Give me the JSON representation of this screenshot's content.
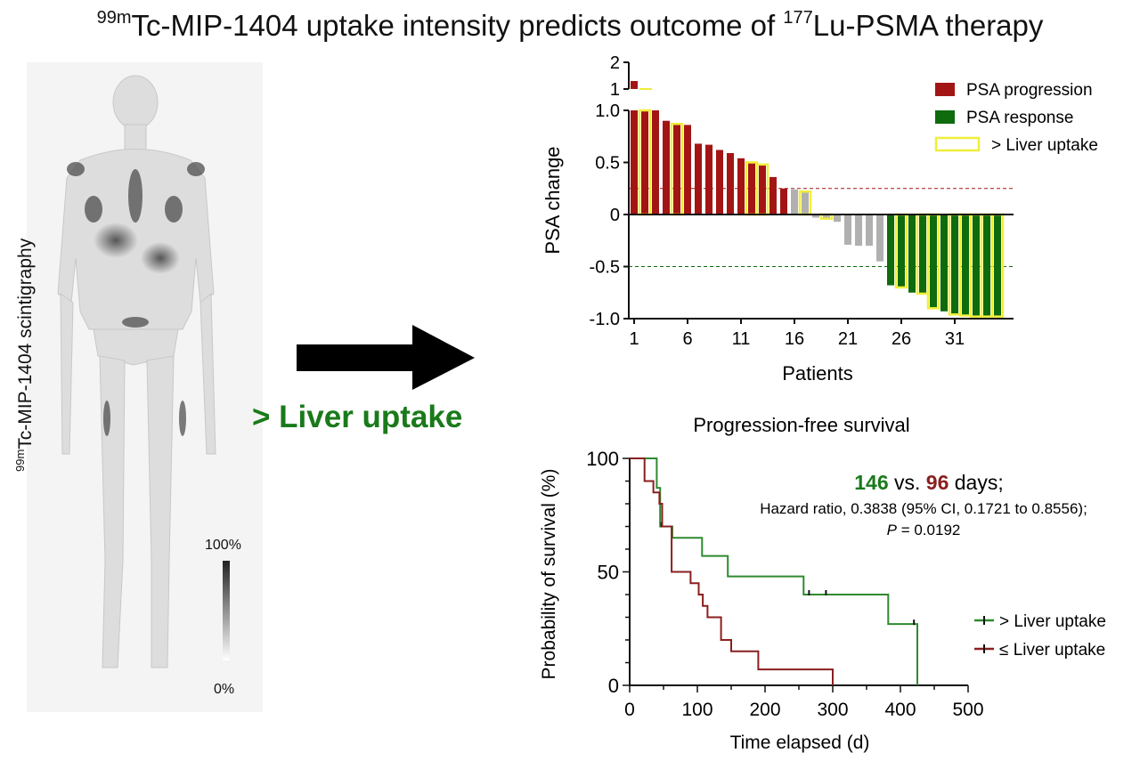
{
  "figure": {
    "title_sup1": "99m",
    "title_main1": "Tc-MIP-1404 uptake intensity predicts outcome of ",
    "title_sup2": "177",
    "title_main2": "Lu-PSMA therapy",
    "left_label_sup": "99m",
    "left_label_main": "Tc-MIP-1404 scintigraphy",
    "scale_max": "100%",
    "scale_min": "0%",
    "arrow_label": "> Liver uptake",
    "colors": {
      "progression": "#a31515",
      "response": "#0e6b0e",
      "liver_outline": "#f0ee3a",
      "neutral": "#b0b0b0",
      "arrow_label": "#1a7a1a"
    },
    "icons": [
      "right-arrow-icon",
      "body-scan-image",
      "grayscale-bar"
    ]
  },
  "chart_data": [
    {
      "type": "bar",
      "ylabel": "PSA change",
      "xlabel": "Patients",
      "legend": [
        "PSA progression",
        "PSA response",
        "> Liver uptake"
      ],
      "legend_position": "top-right",
      "ylim_lower": [
        -1.0,
        1.0
      ],
      "ylim_upper": [
        1,
        2
      ],
      "yticks_lower": [
        "1.0",
        "0.5",
        "0",
        "-0.5",
        "-1.0"
      ],
      "yticks_upper": [
        "2",
        "1"
      ],
      "xticks": [
        "1",
        "6",
        "11",
        "16",
        "21",
        "26",
        "31"
      ],
      "threshold_lines": [
        0.25,
        -0.5
      ],
      "values": [
        1.3,
        1.0,
        1.0,
        0.9,
        0.87,
        0.86,
        0.68,
        0.67,
        0.62,
        0.59,
        0.54,
        0.5,
        0.48,
        0.36,
        0.25,
        0.24,
        0.22,
        -0.03,
        -0.04,
        -0.07,
        -0.29,
        -0.3,
        -0.3,
        -0.45,
        -0.68,
        -0.7,
        -0.75,
        -0.76,
        -0.9,
        -0.93,
        -0.96,
        -0.97,
        -0.98,
        -0.98,
        -0.98
      ],
      "category": [
        "progression",
        "progression",
        "progression",
        "progression",
        "progression",
        "progression",
        "progression",
        "progression",
        "progression",
        "progression",
        "progression",
        "progression",
        "progression",
        "progression",
        "progression",
        "neutral",
        "neutral",
        "neutral",
        "neutral",
        "neutral",
        "neutral",
        "neutral",
        "neutral",
        "neutral",
        "response",
        "response",
        "response",
        "response",
        "response",
        "response",
        "response",
        "response",
        "response",
        "response",
        "response"
      ],
      "liver_uptake": [
        false,
        true,
        false,
        false,
        true,
        false,
        false,
        false,
        false,
        false,
        false,
        true,
        true,
        false,
        false,
        false,
        true,
        false,
        true,
        false,
        false,
        false,
        false,
        false,
        false,
        true,
        false,
        true,
        true,
        false,
        true,
        true,
        true,
        true,
        true
      ]
    },
    {
      "type": "line",
      "title": "Progression-free survival",
      "xlabel": "Time elapsed (d)",
      "ylabel": "Probability of survival (%)",
      "xlim": [
        0,
        500
      ],
      "ylim": [
        0,
        100
      ],
      "xticks": [
        "0",
        "100",
        "200",
        "300",
        "400",
        "500"
      ],
      "yticks": [
        "0",
        "50",
        "100"
      ],
      "legend_position": "right",
      "annotation": {
        "v1": "146",
        "vs": "vs.",
        "v2": "96",
        "days": "days;",
        "hr": "Hazard ratio, 0.3838 (95% CI, 0.1721 to 0.8556);",
        "p_label": "P",
        "p_value": "= 0.0192"
      },
      "series": [
        {
          "name": "> Liver uptake",
          "color": "#2f8a2f",
          "x": [
            0,
            40,
            40,
            45,
            45,
            63,
            63,
            107,
            107,
            145,
            145,
            257,
            257,
            382,
            382,
            425,
            425
          ],
          "y": [
            100,
            100,
            87,
            87,
            70,
            70,
            65,
            65,
            57,
            57,
            48,
            48,
            40,
            40,
            27,
            27,
            0
          ],
          "censor_x": [
            47,
            265,
            290,
            420
          ]
        },
        {
          "name": "≤ Liver uptake",
          "color": "#8a1f1f",
          "x": [
            0,
            22,
            22,
            35,
            35,
            44,
            44,
            48,
            48,
            62,
            62,
            90,
            90,
            102,
            102,
            108,
            108,
            115,
            115,
            135,
            135,
            150,
            150,
            190,
            190,
            300,
            300
          ],
          "y": [
            100,
            100,
            90,
            90,
            85,
            85,
            80,
            80,
            70,
            70,
            50,
            50,
            45,
            45,
            40,
            40,
            35,
            35,
            30,
            30,
            20,
            20,
            15,
            15,
            7,
            7,
            0
          ],
          "censor_x": []
        }
      ]
    }
  ]
}
